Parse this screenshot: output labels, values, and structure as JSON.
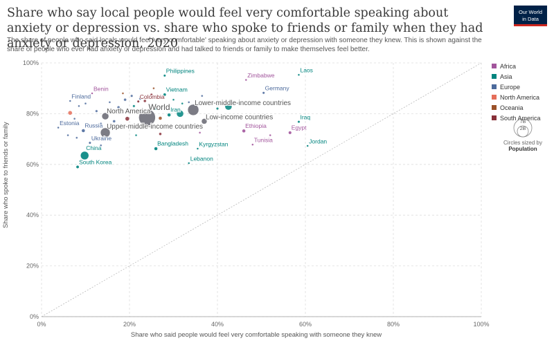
{
  "header": {
    "title": "Share who say local people would feel very comfortable speaking about anxiety or depression vs. share who spoke to friends or family when they had anxiety or depression, 2020",
    "subtitle": "The share of people who said locals would feel 'very comfortable' speaking about anxiety or depression with someone they knew. This is shown against the share of people who ever had anxiety or depression and had talked to friends or family to make themselves feel better.",
    "logo_line1": "Our World",
    "logo_line2": "in Data"
  },
  "size_legend": {
    "big": "7B",
    "small": "2B",
    "caption": "Circles sized by",
    "caption_bold": "Population"
  },
  "colors": {
    "Africa": "#a2559c",
    "Asia": "#00847e",
    "Europe": "#4c6a9c",
    "North America": "#e56e5a",
    "Oceania": "#9a5129",
    "South America": "#883039",
    "aggregate": "#6e6e78"
  },
  "chart_data": {
    "type": "scatter",
    "xlabel": "Share who said people would feel very comfortable speaking with someone they knew",
    "ylabel": "Share who spoke to friends or family",
    "xlim": [
      0,
      100
    ],
    "ylim": [
      0,
      100
    ],
    "x_ticks": [
      "0%",
      "20%",
      "40%",
      "60%",
      "80%",
      "100%"
    ],
    "y_ticks": [
      "0%",
      "20%",
      "40%",
      "60%",
      "80%",
      "100%"
    ],
    "legend": [
      "Africa",
      "Asia",
      "Europe",
      "North America",
      "Oceania",
      "South America"
    ],
    "legend_position": "right",
    "grid": true,
    "diagonal_reference": true,
    "points": [
      {
        "label": "Laos",
        "x": 58.5,
        "y": 95.3,
        "group": "Asia",
        "r": 1.5
      },
      {
        "label": "Philippines",
        "x": 28.0,
        "y": 95.0,
        "group": "Asia",
        "r": 1.8
      },
      {
        "label": "Zimbabwe",
        "x": 46.5,
        "y": 93.3,
        "group": "Africa",
        "r": 1.5
      },
      {
        "label": "Germany",
        "x": 50.5,
        "y": 88.2,
        "group": "Europe",
        "r": 1.8
      },
      {
        "label": "Vietnam",
        "x": 28.0,
        "y": 87.5,
        "group": "Asia",
        "r": 2.2
      },
      {
        "label": "Benin",
        "x": 11.5,
        "y": 88.0,
        "group": "Africa",
        "r": 1.5
      },
      {
        "label": "Finland",
        "x": 6.5,
        "y": 85.0,
        "group": "Europe",
        "r": 1.5
      },
      {
        "label": "Colombia",
        "x": 22.0,
        "y": 84.8,
        "group": "South America",
        "r": 1.8
      },
      {
        "label": "Lower-middle-income countries",
        "x": 34.5,
        "y": 81.5,
        "group": "aggregate",
        "r": 8
      },
      {
        "label": "World",
        "x": 24.0,
        "y": 78.5,
        "group": "aggregate",
        "r": 12
      },
      {
        "label": "North America",
        "x": 14.5,
        "y": 79.0,
        "group": "aggregate",
        "r": 5
      },
      {
        "label": "Iran",
        "x": 29.0,
        "y": 79.5,
        "group": "Asia",
        "r": 2.5
      },
      {
        "label": "Low-income countries",
        "x": 37.0,
        "y": 77.0,
        "group": "aggregate",
        "r": 4
      },
      {
        "label": "Iraq",
        "x": 58.5,
        "y": 76.8,
        "group": "Asia",
        "r": 1.8
      },
      {
        "label": "Estonia",
        "x": 3.8,
        "y": 74.5,
        "group": "Europe",
        "r": 1.5
      },
      {
        "label": "Russia",
        "x": 9.5,
        "y": 73.3,
        "group": "Europe",
        "r": 2.5
      },
      {
        "label": "Upper-middle-income countries",
        "x": 14.5,
        "y": 72.5,
        "group": "aggregate",
        "r": 7
      },
      {
        "label": "Ethiopia",
        "x": 46.0,
        "y": 73.2,
        "group": "Africa",
        "r": 2.5
      },
      {
        "label": "Egypt",
        "x": 56.5,
        "y": 72.5,
        "group": "Africa",
        "r": 2.3
      },
      {
        "label": "Ukraine",
        "x": 11.0,
        "y": 68.5,
        "group": "Europe",
        "r": 1.8
      },
      {
        "label": "Tunisia",
        "x": 48.0,
        "y": 67.8,
        "group": "Africa",
        "r": 1.5
      },
      {
        "label": "Jordan",
        "x": 60.5,
        "y": 67.3,
        "group": "Asia",
        "r": 1.5
      },
      {
        "label": "Bangladesh",
        "x": 26.0,
        "y": 66.2,
        "group": "Asia",
        "r": 2.5
      },
      {
        "label": "Kyrgyzstan",
        "x": 35.5,
        "y": 66.2,
        "group": "Asia",
        "r": 1.5
      },
      {
        "label": "China",
        "x": 9.8,
        "y": 63.5,
        "group": "Asia",
        "r": 6
      },
      {
        "label": "Lebanon",
        "x": 33.5,
        "y": 60.5,
        "group": "Asia",
        "r": 1.5
      },
      {
        "label": "South Korea",
        "x": 8.2,
        "y": 59.0,
        "group": "Asia",
        "r": 2.2
      }
    ],
    "unlabeled_points": [
      {
        "x": 6.5,
        "y": 80.3,
        "group": "North America",
        "r": 3
      },
      {
        "x": 19.5,
        "y": 78.0,
        "group": "South America",
        "r": 3
      },
      {
        "x": 27.0,
        "y": 78.2,
        "group": "Oceania",
        "r": 2.5
      },
      {
        "x": 27.0,
        "y": 72.0,
        "group": "South America",
        "r": 2
      },
      {
        "x": 42.5,
        "y": 82.8,
        "group": "Asia",
        "r": 5
      },
      {
        "x": 31.5,
        "y": 80.0,
        "group": "Asia",
        "r": 5
      },
      {
        "x": 17.5,
        "y": 82.5,
        "group": "Europe",
        "r": 2
      },
      {
        "x": 19.0,
        "y": 85.5,
        "group": "Europe",
        "r": 2
      },
      {
        "x": 20.5,
        "y": 87.0,
        "group": "Europe",
        "r": 1.8
      },
      {
        "x": 22.5,
        "y": 86.0,
        "group": "Europe",
        "r": 2.2
      },
      {
        "x": 23.5,
        "y": 85.0,
        "group": "South America",
        "r": 2
      },
      {
        "x": 25.0,
        "y": 87.5,
        "group": "South America",
        "r": 1.8
      },
      {
        "x": 21.0,
        "y": 83.0,
        "group": "Asia",
        "r": 1.8
      },
      {
        "x": 12.5,
        "y": 81.0,
        "group": "Europe",
        "r": 1.8
      },
      {
        "x": 10.0,
        "y": 84.0,
        "group": "Europe",
        "r": 1.5
      },
      {
        "x": 8.5,
        "y": 83.0,
        "group": "Europe",
        "r": 1.5
      },
      {
        "x": 15.5,
        "y": 84.5,
        "group": "Europe",
        "r": 1.5
      },
      {
        "x": 16.5,
        "y": 77.0,
        "group": "Europe",
        "r": 2
      },
      {
        "x": 18.0,
        "y": 75.5,
        "group": "Europe",
        "r": 1.5
      },
      {
        "x": 13.5,
        "y": 76.0,
        "group": "Europe",
        "r": 1.8
      },
      {
        "x": 11.5,
        "y": 75.5,
        "group": "Europe",
        "r": 1.5
      },
      {
        "x": 7.5,
        "y": 78.0,
        "group": "Europe",
        "r": 1.5
      },
      {
        "x": 6.0,
        "y": 71.5,
        "group": "Europe",
        "r": 1.5
      },
      {
        "x": 8.0,
        "y": 70.5,
        "group": "Europe",
        "r": 1.5
      },
      {
        "x": 12.0,
        "y": 70.0,
        "group": "Europe",
        "r": 1.5
      },
      {
        "x": 13.5,
        "y": 67.5,
        "group": "Europe",
        "r": 1.5
      },
      {
        "x": 15.5,
        "y": 70.5,
        "group": "Africa",
        "r": 1.5
      },
      {
        "x": 21.5,
        "y": 71.5,
        "group": "Asia",
        "r": 1.5
      },
      {
        "x": 26.0,
        "y": 82.0,
        "group": "Asia",
        "r": 1.8
      },
      {
        "x": 32.0,
        "y": 84.0,
        "group": "Asia",
        "r": 1.5
      },
      {
        "x": 30.0,
        "y": 85.5,
        "group": "Asia",
        "r": 1.5
      },
      {
        "x": 33.5,
        "y": 84.5,
        "group": "Europe",
        "r": 1.5
      },
      {
        "x": 36.5,
        "y": 87.0,
        "group": "Europe",
        "r": 1.5
      },
      {
        "x": 40.0,
        "y": 82.0,
        "group": "Asia",
        "r": 1.8
      },
      {
        "x": 52.0,
        "y": 71.5,
        "group": "Africa",
        "r": 1.5
      },
      {
        "x": 36.0,
        "y": 72.5,
        "group": "Africa",
        "r": 1.5
      },
      {
        "x": 25.5,
        "y": 90.0,
        "group": "Oceania",
        "r": 1.5
      },
      {
        "x": 18.5,
        "y": 88.0,
        "group": "Oceania",
        "r": 1.5
      }
    ]
  }
}
